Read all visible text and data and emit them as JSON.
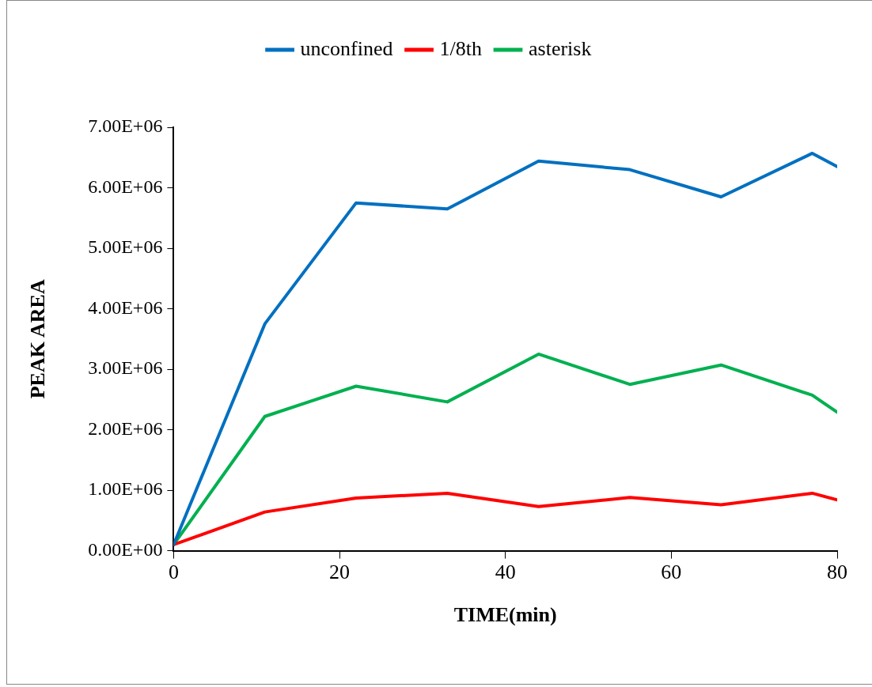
{
  "chart_data": {
    "type": "line",
    "xlabel": "TIME(min)",
    "ylabel": "PEAK AREA",
    "x": [
      0,
      11,
      22,
      33,
      44,
      55,
      66,
      77,
      80
    ],
    "series": [
      {
        "name": "unconfined",
        "color": "#0070c0",
        "values": [
          100000,
          3750000,
          5750000,
          5650000,
          6440000,
          6300000,
          5850000,
          6570000,
          6350000
        ]
      },
      {
        "name": "1/8th",
        "color": "#ff0000",
        "values": [
          100000,
          640000,
          870000,
          950000,
          730000,
          880000,
          760000,
          950000,
          840000
        ]
      },
      {
        "name": "asterisk",
        "color": "#00b050",
        "values": [
          100000,
          2220000,
          2720000,
          2460000,
          3250000,
          2750000,
          3070000,
          2570000,
          2290000
        ]
      }
    ],
    "xlim": [
      0,
      80
    ],
    "xticks": [
      0,
      20,
      40,
      60,
      80
    ],
    "ylim": [
      0,
      7000000
    ],
    "yticks": [
      {
        "value": 0,
        "label": "0.00E+00"
      },
      {
        "value": 1000000,
        "label": "1.00E+06"
      },
      {
        "value": 2000000,
        "label": "2.00E+06"
      },
      {
        "value": 3000000,
        "label": "3.00E+06"
      },
      {
        "value": 4000000,
        "label": "4.00E+06"
      },
      {
        "value": 5000000,
        "label": "5.00E+06"
      },
      {
        "value": 6000000,
        "label": "6.00E+06"
      },
      {
        "value": 7000000,
        "label": "7.00E+06"
      }
    ],
    "grid": false,
    "legend": "top",
    "marker": "none",
    "line_style": "solid"
  }
}
